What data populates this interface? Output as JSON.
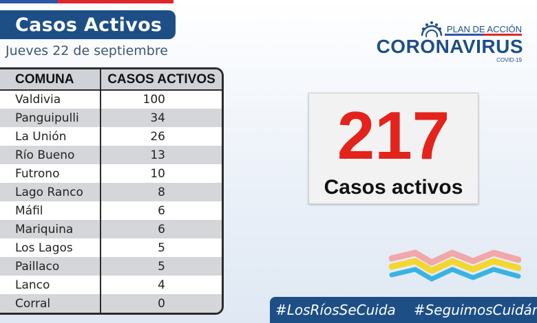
{
  "title": "Casos Activos",
  "date": "Jueves 22 de septiembre",
  "table": {
    "headers": [
      "COMUNA",
      "CASOS ACTIVOS"
    ],
    "rows": [
      {
        "comuna": "Valdivia",
        "casos": "100"
      },
      {
        "comuna": "Panguipulli",
        "casos": "34"
      },
      {
        "comuna": "La Unión",
        "casos": "26"
      },
      {
        "comuna": "Río Bueno",
        "casos": "13"
      },
      {
        "comuna": "Futrono",
        "casos": "10"
      },
      {
        "comuna": "Lago Ranco",
        "casos": "8"
      },
      {
        "comuna": "Máfil",
        "casos": "6"
      },
      {
        "comuna": "Mariquina",
        "casos": "6"
      },
      {
        "comuna": "Los Lagos",
        "casos": "5"
      },
      {
        "comuna": "Paillaco",
        "casos": "5"
      },
      {
        "comuna": "Lanco",
        "casos": "4"
      },
      {
        "comuna": "Corral",
        "casos": "0"
      }
    ]
  },
  "logo": {
    "plan": "PLAN DE ACCIÓN",
    "title": "CORONAVIRUS",
    "sub": "COVID-19"
  },
  "total": {
    "value": "217",
    "label": "Casos activos"
  },
  "hashtags": [
    "#LosRíosSeCuida",
    "#SeguimosCuidándonos"
  ],
  "colors": {
    "navy": "#1d4f86",
    "red": "#e3231c",
    "flag_blue": "#2c56a8",
    "flag_red": "#e0262a",
    "wave_pink": "#f2a7a8",
    "wave_yellow": "#f5d630",
    "wave_blue": "#39b3e3"
  }
}
